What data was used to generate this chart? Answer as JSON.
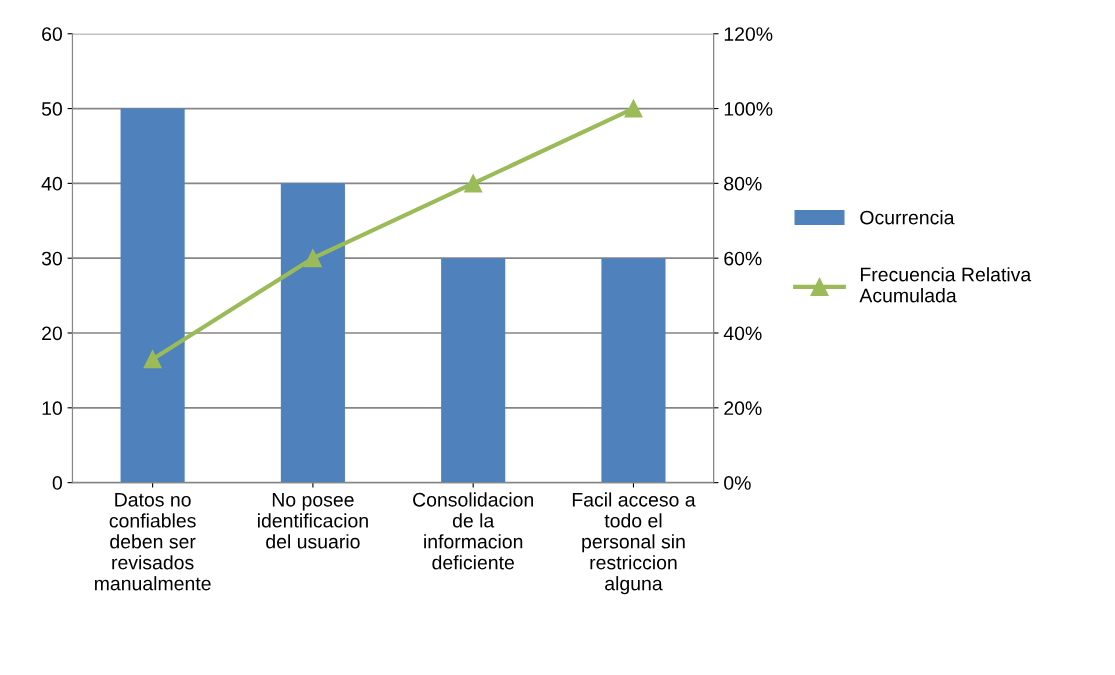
{
  "chart_data": {
    "type": "bar",
    "categories": [
      "Datos no\nconfiables\ndeben ser\nrevisados\nmanualmente",
      "No posee\nidentificacion\ndel usuario",
      "Consolidacion\nde la\ninformacion\ndeficiente",
      "Facil acceso a\ntodo el\npersonal sin\nrestriccion\nalguna"
    ],
    "series": [
      {
        "name": "Ocurrencia",
        "color": "#4f81bd",
        "values": [
          50,
          40,
          30,
          30
        ]
      },
      {
        "name": "Frecuencia Relativa\nAcumulada",
        "type": "line",
        "axis": "y2",
        "color": "#9bbb59",
        "marker": "triangle",
        "values": [
          33,
          60,
          80,
          100
        ]
      }
    ],
    "ylim": [
      0,
      60
    ],
    "yticks": [
      0,
      10,
      20,
      30,
      40,
      50,
      60
    ],
    "y2lim": [
      0,
      120
    ],
    "y2ticks": [
      {
        "value": 0,
        "label": "0%"
      },
      {
        "value": 20,
        "label": "20%"
      },
      {
        "value": 40,
        "label": "40%"
      },
      {
        "value": 60,
        "label": "60%"
      },
      {
        "value": 80,
        "label": "80%"
      },
      {
        "value": 100,
        "label": "100%"
      },
      {
        "value": 120,
        "label": "120%"
      }
    ],
    "grid": "y",
    "legend": "right"
  }
}
